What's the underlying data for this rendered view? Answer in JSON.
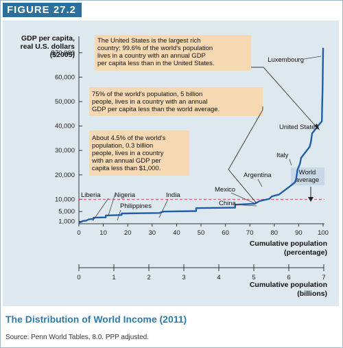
{
  "figure_label": "FIGURE 27.2",
  "caption_title": "The Distribution of World Income (2011)",
  "source_note": "Source: Penn World Tables, 8.0. PPP adjusted.",
  "colors": {
    "accent": "#2e6f99",
    "curve": "#1f5ea8",
    "panel": "#dde8ef",
    "box": "#f6d9b3",
    "dashed": "#e24a5a",
    "title": "#2b7aa8"
  },
  "chart_data": {
    "type": "line",
    "ylabel": [
      "GDP per capita,",
      "real U.S. dollars",
      "($2005)"
    ],
    "xlabel": [
      "Cumulative population",
      "(percentage)"
    ],
    "x2label": [
      "Cumulative population",
      "(billions)"
    ],
    "xlim": [
      0,
      100
    ],
    "ylim": [
      0,
      75000
    ],
    "yticks": [
      1000,
      5000,
      10000,
      20000,
      30000,
      40000,
      50000,
      60000,
      70000
    ],
    "ytick_labels": [
      "1,000",
      "5,000",
      "10,000",
      "20,000",
      "30,000",
      "40,000",
      "50,000",
      "60,000",
      "$70,000"
    ],
    "xticks": [
      0,
      10,
      20,
      30,
      40,
      50,
      60,
      70,
      80,
      90,
      100
    ],
    "xtick_labels": [
      "0",
      "10",
      "20",
      "30",
      "40",
      "50",
      "60",
      "70",
      "80",
      "90",
      "100"
    ],
    "x2ticks": [
      "0",
      "1",
      "2",
      "3",
      "4",
      "5",
      "6",
      "7"
    ],
    "reference_line": {
      "label": [
        "World",
        "average"
      ],
      "value": 10000
    },
    "series": [
      {
        "x": [
          0,
          1,
          1.5,
          3,
          4,
          6,
          6,
          11,
          11,
          17.5,
          17.5,
          33,
          34.5,
          48,
          48,
          64,
          64,
          72,
          74,
          78,
          79,
          82,
          84,
          86,
          88.5,
          89,
          89.5,
          90.5,
          91,
          94.5,
          95,
          95.5,
          99.5,
          99.6,
          99.8,
          100
        ],
        "y": [
          500,
          800,
          1100,
          1300,
          1800,
          2000,
          2500,
          2600,
          3400,
          3600,
          4200,
          4400,
          5000,
          5200,
          6400,
          6600,
          7800,
          8200,
          9300,
          10200,
          11200,
          12000,
          13500,
          15000,
          17000,
          18500,
          22000,
          24500,
          27000,
          31500,
          33500,
          37000,
          42000,
          48000,
          56000,
          72000
        ]
      }
    ],
    "point_labels": [
      "Luxembourg",
      "United States",
      "Italy",
      "Argentina",
      "Mexico",
      "China",
      "India",
      "Philippines",
      "Nigeria",
      "Liberia"
    ],
    "annotations": [
      [
        "The United States is the largest rich",
        "country: 99.6% of the world's population",
        "lives in a country with an annual GDP",
        "per capita less than in the United States."
      ],
      [
        "75% of the world's population, 5 billion",
        "people, lives in a country with an annual",
        "GDP per capita less than the world average."
      ],
      [
        "About 4.5% of the world's",
        "population, 0.3 billion",
        "people, lives in a country",
        "with an annual GDP per",
        "capita less than $1,000."
      ]
    ]
  }
}
